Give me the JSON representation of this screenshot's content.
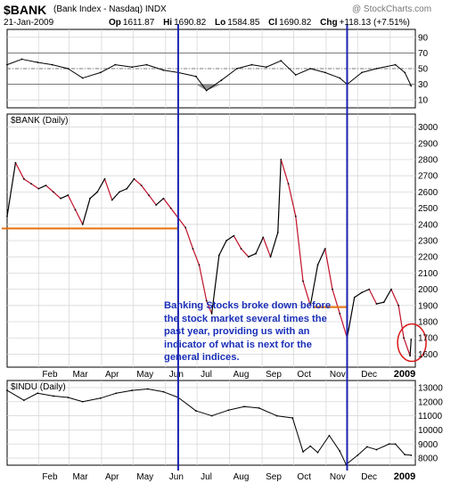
{
  "header": {
    "symbol": "$BANK",
    "name": "(Bank Index - Nasdaq) INDX",
    "date": "21-Jan-2009",
    "open_label": "Op",
    "open": "1611.87",
    "high_label": "Hi",
    "high": "1690.82",
    "low_label": "Lo",
    "low": "1584.85",
    "close_label": "Cl",
    "close": "1690.82",
    "change_label": "Chg",
    "change": "+118.13 (+7.51%)",
    "watermark": "@ StockCharts.com"
  },
  "annotation": "Banking Stocks broke down before the stock market several times the past year, providing us with an indicator of what is next for the general indices.",
  "colors": {
    "price_line": "#000000",
    "down_segments": "#c0102a",
    "support": "#e8700c",
    "vertical_markers": "#1a22b0",
    "circle": "#d81818",
    "grid": "#d8d8d8",
    "rsi_fill": "#8f8f8f"
  },
  "chart_data": [
    {
      "type": "line",
      "title": "",
      "panel_label": "",
      "yticks": [
        10,
        30,
        50,
        70,
        90
      ],
      "ylim": [
        0,
        100
      ],
      "reference_lines": [
        70,
        50,
        30
      ],
      "x": [
        "2008-01-02",
        "2008-01-16",
        "2008-01-31",
        "2008-02-14",
        "2008-02-29",
        "2008-03-14",
        "2008-03-31",
        "2008-04-14",
        "2008-04-30",
        "2008-05-14",
        "2008-05-30",
        "2008-06-13",
        "2008-06-30",
        "2008-07-10",
        "2008-07-24",
        "2008-08-08",
        "2008-08-22",
        "2008-09-05",
        "2008-09-19",
        "2008-10-03",
        "2008-10-17",
        "2008-10-31",
        "2008-11-14",
        "2008-11-21",
        "2008-12-05",
        "2008-12-19",
        "2009-01-06",
        "2009-01-15",
        "2009-01-21"
      ],
      "values": [
        55,
        62,
        58,
        55,
        50,
        38,
        45,
        55,
        52,
        55,
        48,
        45,
        40,
        22,
        35,
        50,
        55,
        52,
        60,
        42,
        50,
        45,
        38,
        30,
        45,
        50,
        55,
        45,
        28
      ]
    },
    {
      "type": "line",
      "title": "",
      "panel_label": "$BANK (Daily)",
      "yticks": [
        1600,
        1700,
        1800,
        1900,
        2000,
        2100,
        2200,
        2300,
        2400,
        2500,
        2600,
        2700,
        2800,
        2900,
        3000
      ],
      "ylim": [
        1520,
        3080
      ],
      "x": [
        "2008-01-02",
        "2008-01-10",
        "2008-01-18",
        "2008-01-25",
        "2008-02-01",
        "2008-02-08",
        "2008-02-15",
        "2008-02-22",
        "2008-02-29",
        "2008-03-07",
        "2008-03-14",
        "2008-03-21",
        "2008-03-28",
        "2008-04-04",
        "2008-04-11",
        "2008-04-18",
        "2008-04-25",
        "2008-05-02",
        "2008-05-09",
        "2008-05-16",
        "2008-05-23",
        "2008-05-30",
        "2008-06-06",
        "2008-06-13",
        "2008-06-20",
        "2008-06-27",
        "2008-07-03",
        "2008-07-10",
        "2008-07-15",
        "2008-07-22",
        "2008-07-29",
        "2008-08-05",
        "2008-08-12",
        "2008-08-19",
        "2008-08-26",
        "2008-09-02",
        "2008-09-09",
        "2008-09-16",
        "2008-09-19",
        "2008-09-26",
        "2008-10-03",
        "2008-10-10",
        "2008-10-17",
        "2008-10-24",
        "2008-10-31",
        "2008-11-07",
        "2008-11-14",
        "2008-11-21",
        "2008-11-28",
        "2008-12-05",
        "2008-12-12",
        "2008-12-19",
        "2008-12-26",
        "2009-01-02",
        "2009-01-09",
        "2009-01-14",
        "2009-01-20",
        "2009-01-21"
      ],
      "values": [
        2450,
        2780,
        2680,
        2650,
        2620,
        2640,
        2600,
        2560,
        2580,
        2490,
        2400,
        2560,
        2600,
        2680,
        2550,
        2600,
        2620,
        2680,
        2640,
        2580,
        2520,
        2560,
        2500,
        2440,
        2380,
        2250,
        2150,
        1930,
        1850,
        2210,
        2300,
        2330,
        2250,
        2200,
        2220,
        2320,
        2200,
        2350,
        2800,
        2650,
        2450,
        2050,
        1900,
        2150,
        2250,
        2000,
        1850,
        1700,
        1950,
        1980,
        2000,
        1910,
        1920,
        2000,
        1900,
        1700,
        1590,
        1690
      ],
      "support_lines": [
        {
          "level": 2375,
          "from": "2008-01-02",
          "to": "2008-06-13"
        },
        {
          "level": 1890,
          "from": "2008-10-20",
          "to": "2008-11-21"
        }
      ],
      "vertical_markers": [
        "2008-06-13",
        "2008-11-21"
      ],
      "highlight": {
        "x": "2009-01-20",
        "y": 1660
      }
    },
    {
      "type": "line",
      "title": "",
      "panel_label": "$INDU (Daily)",
      "yticks": [
        8000,
        9000,
        10000,
        11000,
        12000,
        13000
      ],
      "ylim": [
        7500,
        13500
      ],
      "x": [
        "2008-01-02",
        "2008-01-18",
        "2008-01-31",
        "2008-02-15",
        "2008-02-29",
        "2008-03-14",
        "2008-03-31",
        "2008-04-15",
        "2008-04-30",
        "2008-05-15",
        "2008-05-30",
        "2008-06-13",
        "2008-06-30",
        "2008-07-15",
        "2008-07-31",
        "2008-08-15",
        "2008-08-29",
        "2008-09-15",
        "2008-09-30",
        "2008-10-10",
        "2008-10-17",
        "2008-10-24",
        "2008-11-04",
        "2008-11-14",
        "2008-11-20",
        "2008-12-01",
        "2008-12-10",
        "2008-12-19",
        "2008-12-31",
        "2009-01-06",
        "2009-01-15",
        "2009-01-21"
      ],
      "values": [
        12800,
        12100,
        12600,
        12400,
        12300,
        12000,
        12250,
        12600,
        12800,
        12900,
        12700,
        12300,
        11350,
        11000,
        11400,
        11650,
        11550,
        11000,
        10850,
        8450,
        8850,
        8400,
        9600,
        8500,
        7550,
        8200,
        8800,
        8600,
        9000,
        9000,
        8250,
        8200
      ]
    }
  ],
  "x_axis": {
    "ticks": [
      "2008-02-01",
      "2008-03-01",
      "2008-04-01",
      "2008-05-01",
      "2008-06-01",
      "2008-07-01",
      "2008-08-01",
      "2008-09-01",
      "2008-10-01",
      "2008-11-01",
      "2008-12-01",
      "2009-01-01"
    ],
    "labels": [
      "Feb",
      "Mar",
      "Apr",
      "May",
      "Jun",
      "Jul",
      "Aug",
      "Sep",
      "Oct",
      "Nov",
      "Dec",
      "2009"
    ]
  }
}
